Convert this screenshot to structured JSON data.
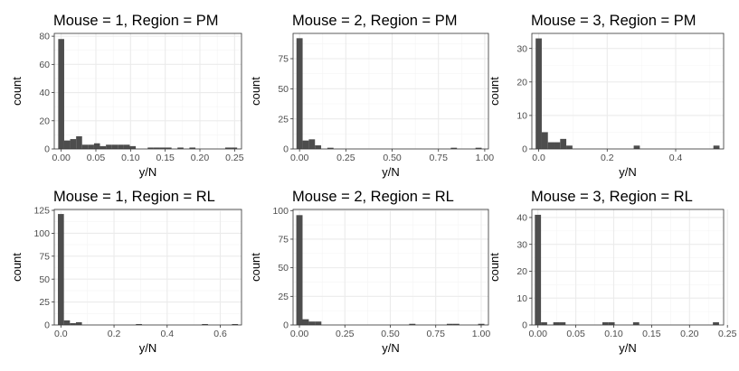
{
  "chart_data": [
    {
      "type": "bar",
      "title": "Mouse = 1, Region = PM",
      "xlabel": "y/N",
      "ylabel": "count",
      "xlim": [
        -0.01,
        0.26
      ],
      "ylim": [
        0,
        82
      ],
      "xticks": [
        "0.00",
        "0.05",
        "0.10",
        "0.15",
        "0.20",
        "0.25"
      ],
      "xtick_values": [
        0,
        0.05,
        0.1,
        0.15,
        0.2,
        0.25
      ],
      "yticks": [
        "0",
        "20",
        "40",
        "60",
        "80"
      ],
      "ytick_values": [
        0,
        20,
        40,
        60,
        80
      ],
      "grid": true,
      "bin_width": 0.0086,
      "bin_centers": [
        0.0,
        0.0086,
        0.0172,
        0.0258,
        0.0344,
        0.043,
        0.0516,
        0.0602,
        0.0688,
        0.0774,
        0.086,
        0.0946,
        0.1032,
        0.129,
        0.1376,
        0.1462,
        0.1548,
        0.172,
        0.1892,
        0.2408,
        0.2494
      ],
      "counts": [
        78,
        6,
        7,
        9,
        3,
        3,
        4,
        2,
        3,
        3,
        3,
        3,
        2,
        1,
        1,
        1,
        1,
        1,
        1,
        1,
        1
      ]
    },
    {
      "type": "bar",
      "title": "Mouse = 2, Region = PM",
      "xlabel": "y/N",
      "ylabel": "count",
      "xlim": [
        -0.035,
        1.02
      ],
      "ylim": [
        0,
        96
      ],
      "xticks": [
        "0.00",
        "0.25",
        "0.50",
        "0.75",
        "1.00"
      ],
      "xtick_values": [
        0,
        0.25,
        0.5,
        0.75,
        1.0
      ],
      "yticks": [
        "0",
        "25",
        "50",
        "75"
      ],
      "ytick_values": [
        0,
        25,
        50,
        75
      ],
      "grid": true,
      "bin_width": 0.0333,
      "bin_centers": [
        0.0,
        0.0333,
        0.0667,
        0.1,
        0.1667,
        0.8333,
        0.9667
      ],
      "counts": [
        92,
        7,
        8,
        3,
        1,
        1,
        1
      ]
    },
    {
      "type": "bar",
      "title": "Mouse = 3, Region = PM",
      "xlabel": "y/N",
      "ylabel": "count",
      "xlim": [
        -0.02,
        0.54
      ],
      "ylim": [
        0,
        34.5
      ],
      "xticks": [
        "0.0",
        "0.2",
        "0.4"
      ],
      "xtick_values": [
        0,
        0.2,
        0.4
      ],
      "yticks": [
        "0",
        "10",
        "20",
        "30"
      ],
      "ytick_values": [
        0,
        10,
        20,
        30
      ],
      "grid": true,
      "bin_width": 0.0179,
      "bin_centers": [
        0.0,
        0.0179,
        0.0358,
        0.0537,
        0.0716,
        0.0895,
        0.2864,
        0.5191
      ],
      "counts": [
        33,
        5,
        2,
        2,
        3,
        1,
        1,
        1
      ]
    },
    {
      "type": "bar",
      "title": "Mouse = 1, Region = RL",
      "xlabel": "y/N",
      "ylabel": "count",
      "xlim": [
        -0.025,
        0.68
      ],
      "ylim": [
        0,
        126
      ],
      "xticks": [
        "0.0",
        "0.2",
        "0.4",
        "0.6"
      ],
      "xtick_values": [
        0,
        0.2,
        0.4,
        0.6
      ],
      "yticks": [
        "0",
        "25",
        "50",
        "75",
        "100",
        "125"
      ],
      "ytick_values": [
        0,
        25,
        50,
        75,
        100,
        125
      ],
      "grid": true,
      "bin_width": 0.0226,
      "bin_centers": [
        0.0,
        0.0226,
        0.0452,
        0.0678,
        0.2938,
        0.5424,
        0.6554
      ],
      "counts": [
        121,
        5,
        2,
        3,
        1,
        1,
        1
      ]
    },
    {
      "type": "bar",
      "title": "Mouse = 2, Region = RL",
      "xlabel": "y/N",
      "ylabel": "count",
      "xlim": [
        -0.035,
        1.04
      ],
      "ylim": [
        0,
        101
      ],
      "xticks": [
        "0.00",
        "0.25",
        "0.50",
        "0.75",
        "1.00"
      ],
      "xtick_values": [
        0,
        0.25,
        0.5,
        0.75,
        1.0
      ],
      "yticks": [
        "0",
        "25",
        "50",
        "75",
        "100"
      ],
      "ytick_values": [
        0,
        25,
        50,
        75,
        100
      ],
      "grid": true,
      "bin_width": 0.0345,
      "bin_centers": [
        0.0,
        0.0345,
        0.069,
        0.1035,
        0.621,
        0.828,
        0.8625,
        1.0005
      ],
      "counts": [
        96,
        5,
        3,
        3,
        1,
        1,
        1,
        1
      ]
    },
    {
      "type": "bar",
      "title": "Mouse = 3, Region = RL",
      "xlabel": "y/N",
      "ylabel": "count",
      "xlim": [
        -0.008,
        0.245
      ],
      "ylim": [
        0,
        43
      ],
      "xticks": [
        "0.00",
        "0.05",
        "0.10",
        "0.15",
        "0.20",
        "0.25"
      ],
      "xtick_values": [
        0,
        0.05,
        0.1,
        0.15,
        0.2,
        0.25
      ],
      "yticks": [
        "0",
        "10",
        "20",
        "30",
        "40"
      ],
      "ytick_values": [
        0,
        10,
        20,
        30,
        40
      ],
      "grid": true,
      "bin_width": 0.0081,
      "bin_centers": [
        0.0,
        0.0081,
        0.0243,
        0.0324,
        0.0891,
        0.0972,
        0.1296,
        0.2349
      ],
      "counts": [
        41,
        1,
        1,
        1,
        1,
        1,
        1,
        1
      ]
    }
  ],
  "style": {
    "bar_color": "#4d4d4d",
    "panel_border_color": "#333333",
    "major_grid_color": "#ebebeb",
    "minor_grid_color": "#f4f4f4",
    "tick_color": "#333333",
    "tick_label_color": "#4d4d4d",
    "text_color": "#000000"
  }
}
